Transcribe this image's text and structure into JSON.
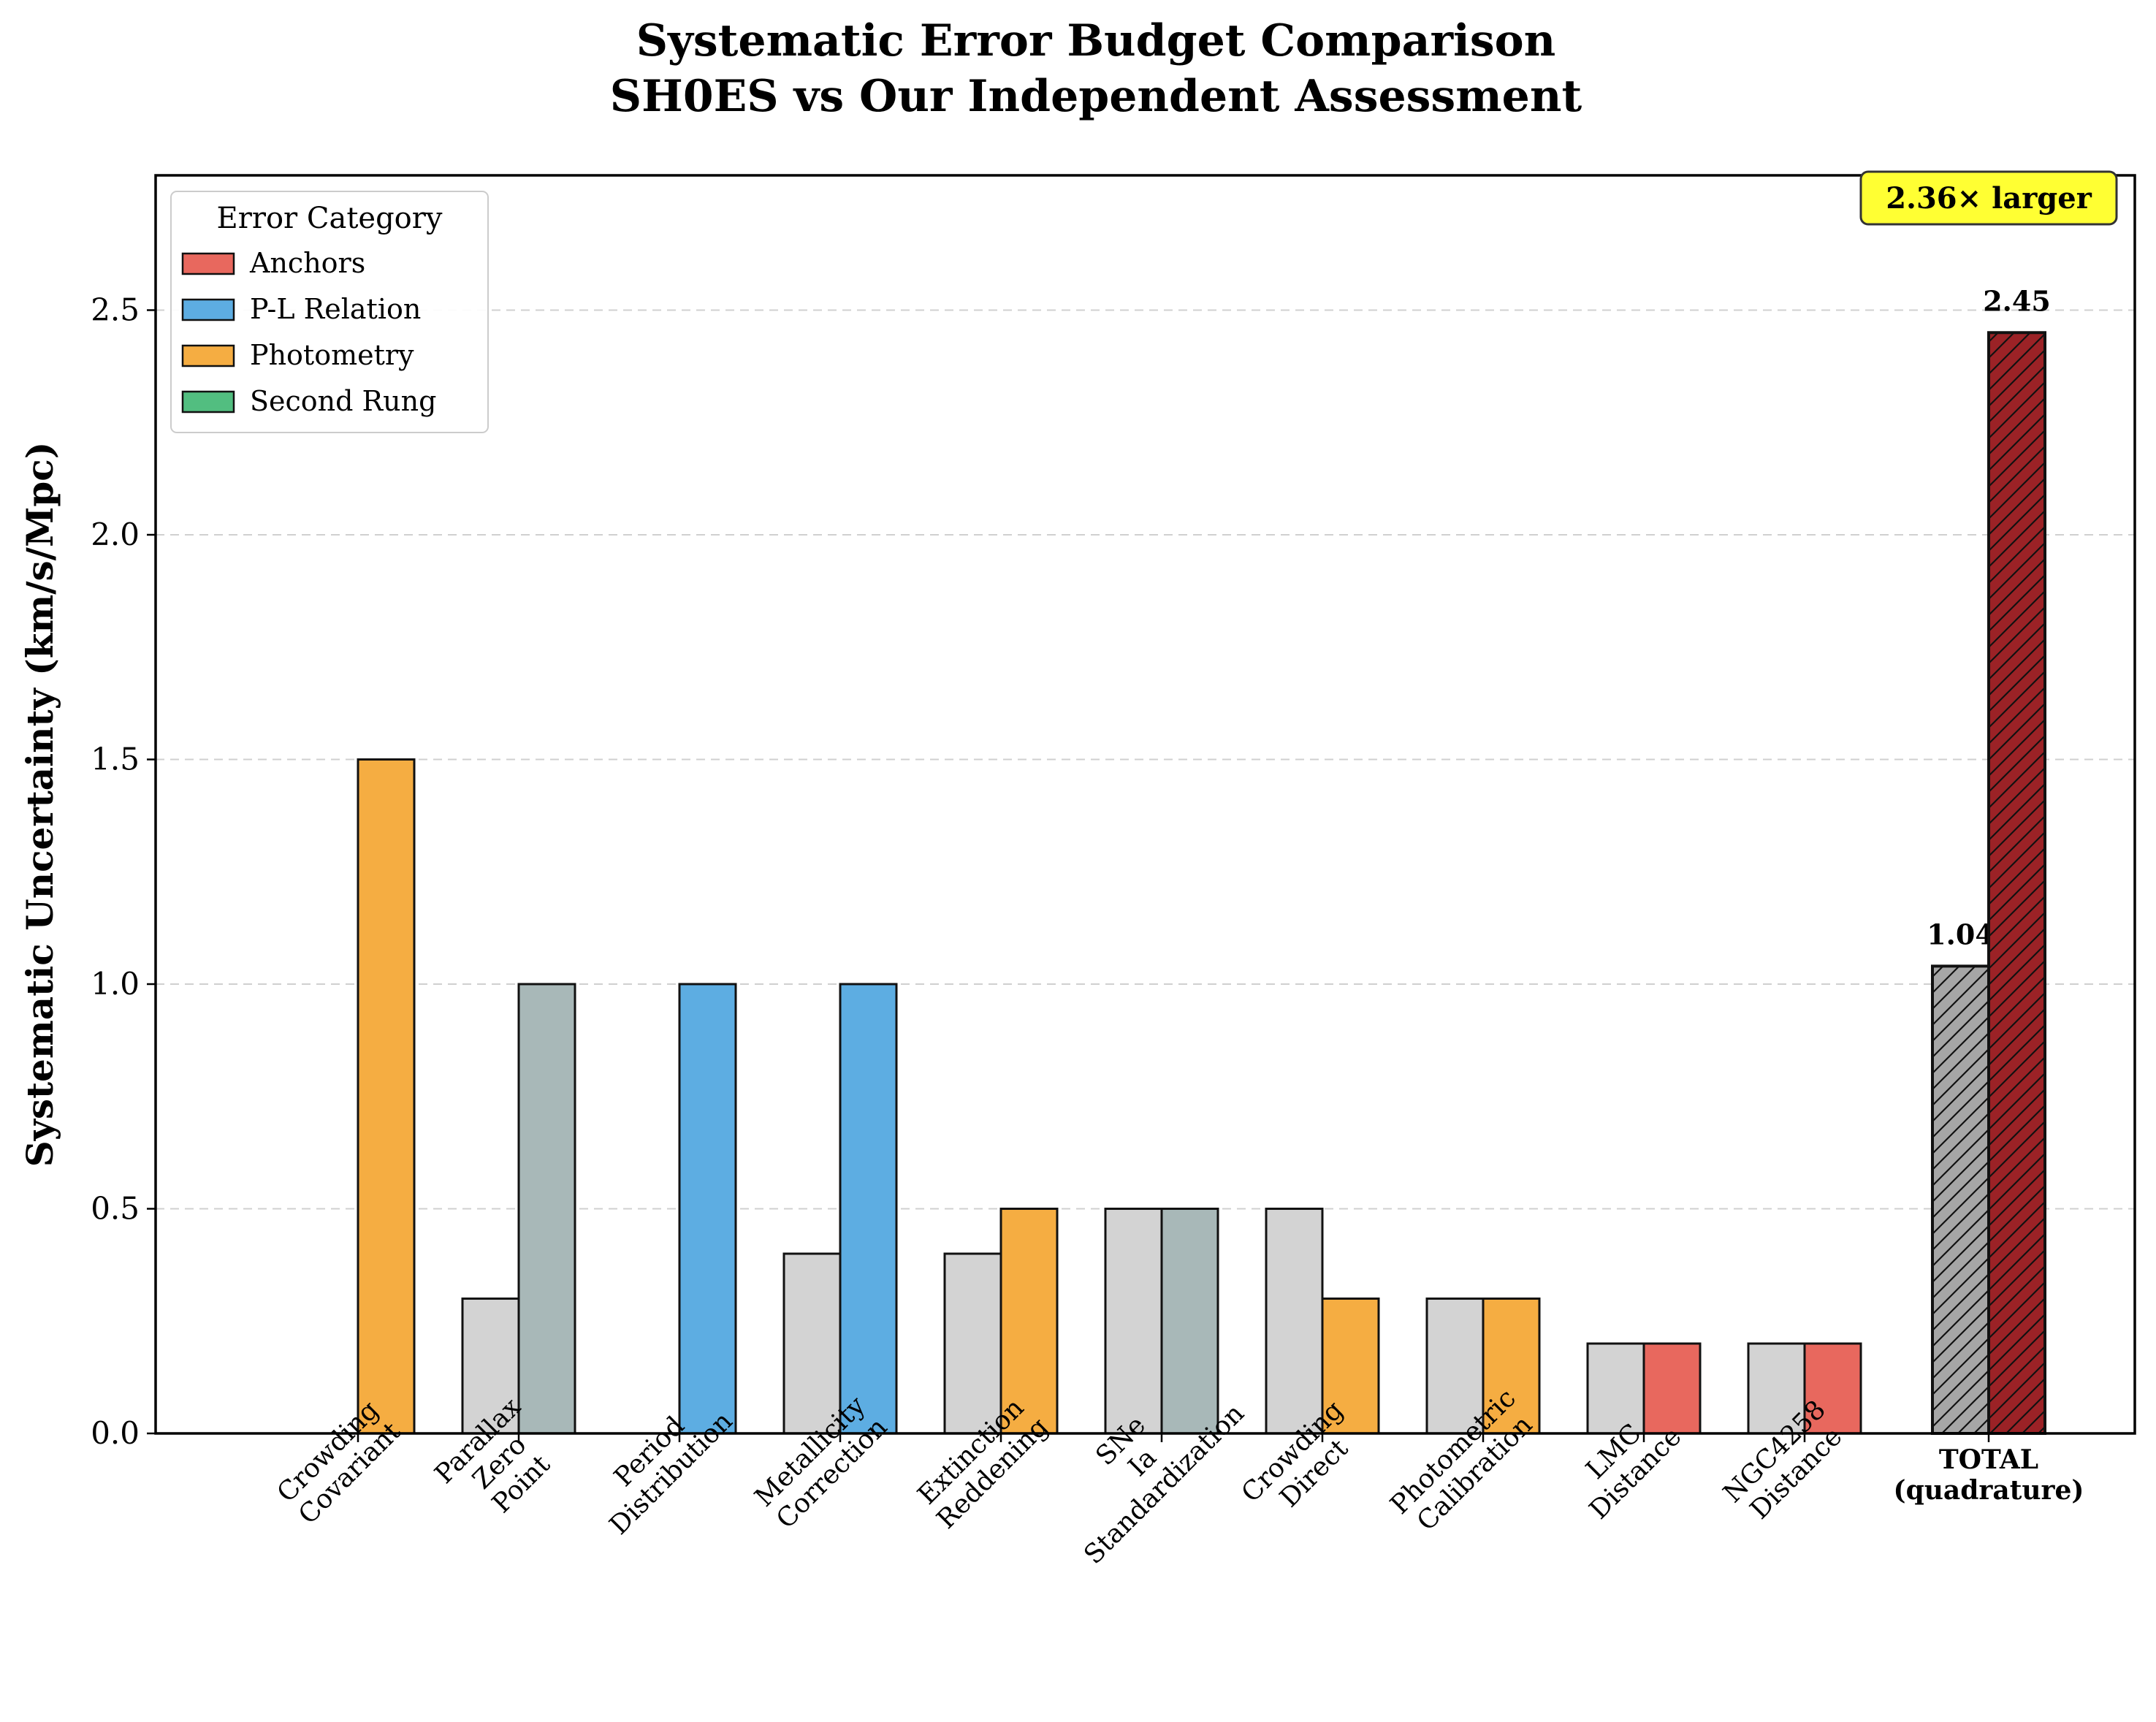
{
  "chart_data": {
    "type": "bar",
    "title": "Systematic Error Budget Comparison",
    "subtitle": "SH0ES vs Our Independent Assessment",
    "xlabel": "",
    "ylabel": "Systematic Uncertainty (km/s/Mpc)",
    "ylim": [
      0,
      2.8
    ],
    "yticks": [
      "0.0",
      "0.5",
      "1.0",
      "1.5",
      "2.0",
      "2.5"
    ],
    "grid": "y-dashed",
    "legend": {
      "title": "Error Category",
      "position": "top-left",
      "entries": [
        {
          "label": "Anchors",
          "color": "#e8685e"
        },
        {
          "label": "P-L Relation",
          "color": "#5dade2"
        },
        {
          "label": "Photometry",
          "color": "#f5ad42"
        },
        {
          "label": "Second Rung",
          "color": "#52be80"
        }
      ]
    },
    "categories": [
      "Crowding\nCovariant",
      "Parallax\nZero\nPoint",
      "Period\nDistribution",
      "Metallicity\nCorrection",
      "Extinction\nReddening",
      "SNe\nIa\nStandardization",
      "Crowding\nDirect",
      "Photometric\nCalibration",
      "LMC\nDistance",
      "NGC4258\nDistance"
    ],
    "series": [
      {
        "values": [
          0,
          0.3,
          0,
          0.4,
          0.4,
          0.5,
          0.5,
          0.3,
          0.2,
          0.2
        ],
        "color": "#d3d3d3"
      },
      {
        "values": [
          1.5,
          1.0,
          1.0,
          1.0,
          0.5,
          0.5,
          0.3,
          0.3,
          0.2,
          0.2
        ],
        "colors": [
          "#f5ad42",
          "#a8b8b8",
          "#5dade2",
          "#5dade2",
          "#f5ad42",
          "#a8b8b8",
          "#f5ad42",
          "#f5ad42",
          "#e8685e",
          "#e8685e"
        ]
      }
    ],
    "total": {
      "label": "TOTAL\n(quadrature)",
      "values": [
        1.04,
        2.45
      ],
      "value_labels": [
        "1.04",
        "2.45"
      ],
      "colors": [
        "#a6a6a6",
        "#9b2226"
      ],
      "hatch": true
    },
    "annotation": {
      "text": "2.36× larger",
      "background": "#ffff33"
    }
  }
}
